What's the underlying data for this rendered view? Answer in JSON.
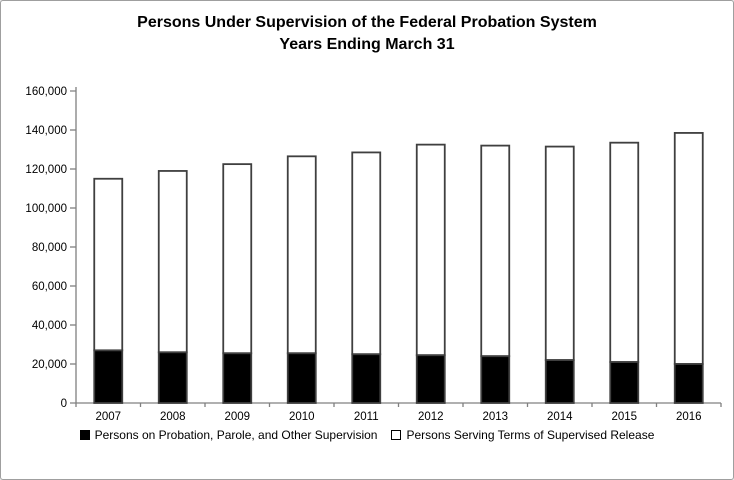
{
  "window": {
    "background": "#ffffff",
    "border_color": "#9f9f9f"
  },
  "chart": {
    "title_line1": "Persons Under Supervision of the Federal Probation System",
    "title_line2": "Years Ending March 31"
  },
  "chart_data": {
    "type": "bar",
    "stacked": true,
    "title": "Persons Under Supervision of the Federal Probation System — Years Ending March 31",
    "categories": [
      "2007",
      "2008",
      "2009",
      "2010",
      "2011",
      "2012",
      "2013",
      "2014",
      "2015",
      "2016"
    ],
    "series": [
      {
        "name": "Persons on Probation, Parole, and Other Supervision",
        "color": "#000000",
        "values": [
          27000,
          26000,
          25500,
          25500,
          25000,
          24500,
          24000,
          22000,
          21000,
          20000
        ]
      },
      {
        "name": "Persons Serving Terms of Supervised Release",
        "color": "#ffffff",
        "values": [
          88000,
          93000,
          97000,
          101000,
          103500,
          108000,
          108000,
          109500,
          112500,
          118500
        ]
      }
    ],
    "stack_totals": [
      115000,
      119000,
      122500,
      126500,
      128500,
      132500,
      132000,
      131500,
      133500,
      138500
    ],
    "xlabel": "",
    "ylabel": "",
    "ylim": [
      0,
      160000
    ],
    "y_tick_step": 20000,
    "y_tick_labels": [
      "0",
      "20,000",
      "40,000",
      "60,000",
      "80,000",
      "100,000",
      "120,000",
      "140,000",
      "160,000"
    ],
    "grid": false,
    "legend_position": "bottom",
    "bar_outline_color": "#3f3f3f",
    "axis_color": "#808080"
  }
}
